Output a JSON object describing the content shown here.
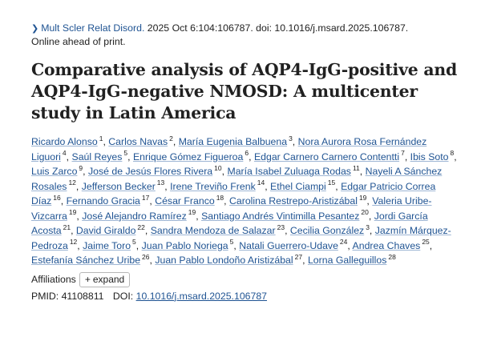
{
  "citation": {
    "chevron_icon": "chevron-right-icon",
    "journal": "Mult Scler Relat Disord.",
    "details": " 2025 Oct 6:104:106787. doi: 10.1016/j.msard.2025.106787."
  },
  "status": "Online ahead of print.",
  "title": "Comparative analysis of AQP4-IgG-positive and AQP4-IgG-negative NMOSD: A multicenter study in Latin America",
  "authors": [
    {
      "name": "Ricardo Alonso",
      "aff": "1"
    },
    {
      "name": "Carlos Navas",
      "aff": "2"
    },
    {
      "name": "María Eugenia Balbuena",
      "aff": "3"
    },
    {
      "name": "Nora Aurora Rosa Fernández Liguori",
      "aff": "4"
    },
    {
      "name": "Saúl Reyes",
      "aff": "5"
    },
    {
      "name": "Enrique Gómez Figueroa",
      "aff": "6"
    },
    {
      "name": "Edgar Carnero Carnero Contentti",
      "aff": "7"
    },
    {
      "name": "Ibis Soto",
      "aff": "8"
    },
    {
      "name": "Luis Zarco",
      "aff": "9"
    },
    {
      "name": "José de Jesús Flores Rivera",
      "aff": "10"
    },
    {
      "name": "María Isabel Zuluaga Rodas",
      "aff": "11"
    },
    {
      "name": "Nayeli A Sánchez Rosales",
      "aff": "12"
    },
    {
      "name": "Jefferson Becker",
      "aff": "13"
    },
    {
      "name": "Irene Treviño Frenk",
      "aff": "14"
    },
    {
      "name": "Ethel Ciampi",
      "aff": "15"
    },
    {
      "name": "Edgar Patricio Correa Díaz",
      "aff": "16"
    },
    {
      "name": "Fernando Gracia",
      "aff": "17"
    },
    {
      "name": "César Franco",
      "aff": "18"
    },
    {
      "name": "Carolina Restrepo-Aristizábal",
      "aff": "19"
    },
    {
      "name": "Valeria Uribe-Vizcarra",
      "aff": "19"
    },
    {
      "name": "José Alejandro Ramírez",
      "aff": "19"
    },
    {
      "name": "Santiago Andrés Vintimilla Pesantez",
      "aff": "20"
    },
    {
      "name": "Jordi García Acosta",
      "aff": "21"
    },
    {
      "name": "David Giraldo",
      "aff": "22"
    },
    {
      "name": "Sandra Mendoza de Salazar",
      "aff": "23"
    },
    {
      "name": "Cecilia González",
      "aff": "3"
    },
    {
      "name": "Jazmín Márquez-Pedroza",
      "aff": "12"
    },
    {
      "name": "Jaime Toro",
      "aff": "5"
    },
    {
      "name": "Juan Pablo Noriega",
      "aff": "5"
    },
    {
      "name": "Natali Guerrero-Udave",
      "aff": "24"
    },
    {
      "name": "Andrea Chaves",
      "aff": "25"
    },
    {
      "name": "Estefanía Sánchez Uribe",
      "aff": "26"
    },
    {
      "name": "Juan Pablo Londoño Aristizábal",
      "aff": "27"
    },
    {
      "name": "Lorna Galleguillos",
      "aff": "28"
    }
  ],
  "affiliations": {
    "label": "Affiliations",
    "expand_label": "expand",
    "plus_icon": "plus-icon"
  },
  "ids": {
    "pmid_label": "PMID:",
    "pmid": "41108811",
    "doi_label": "DOI:",
    "doi": "10.1016/j.msard.2025.106787"
  },
  "colors": {
    "link": "#205493",
    "text": "#212121"
  }
}
